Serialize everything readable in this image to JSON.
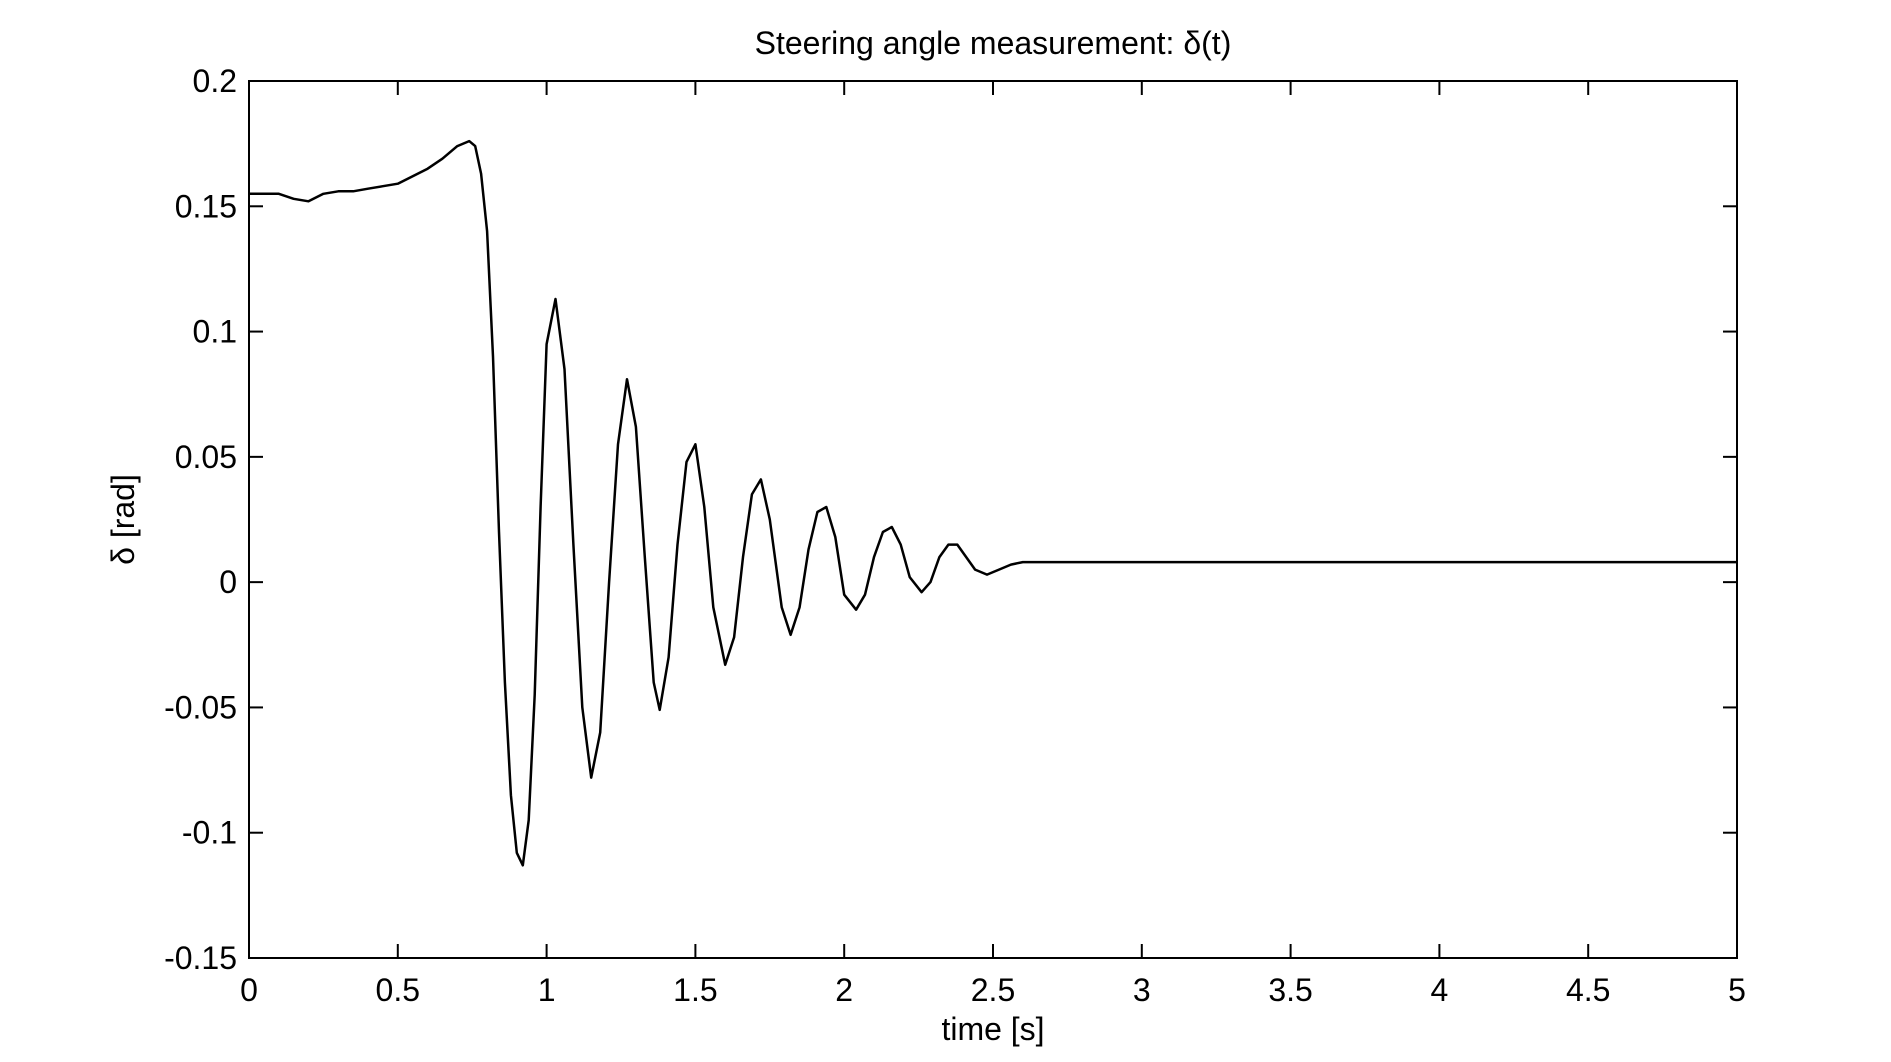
{
  "chart_data": {
    "type": "line",
    "title": "Steering angle measurement: δ(t)",
    "xlabel": "time [s]",
    "ylabel": "δ [rad]",
    "xlim": [
      0,
      5
    ],
    "ylim": [
      -0.15,
      0.2
    ],
    "x_ticks": [
      0,
      0.5,
      1,
      1.5,
      2,
      2.5,
      3,
      3.5,
      4,
      4.5,
      5
    ],
    "x_tick_labels": [
      "0",
      "0.5",
      "1",
      "1.5",
      "2",
      "2.5",
      "3",
      "3.5",
      "4",
      "4.5",
      "5"
    ],
    "y_ticks": [
      -0.15,
      -0.1,
      -0.05,
      0,
      0.05,
      0.1,
      0.15,
      0.2
    ],
    "y_tick_labels": [
      "-0.15",
      "-0.1",
      "-0.05",
      "0",
      "0.05",
      "0.1",
      "0.15",
      "0.2"
    ],
    "grid": false,
    "line_color": "#000000",
    "series": [
      {
        "x": [
          0,
          0.05,
          0.1,
          0.15,
          0.2,
          0.25,
          0.3,
          0.35,
          0.4,
          0.45,
          0.5,
          0.55,
          0.6,
          0.65,
          0.7,
          0.74,
          0.76,
          0.78,
          0.8,
          0.82,
          0.84,
          0.86,
          0.88,
          0.9,
          0.92,
          0.94,
          0.96,
          0.98,
          1.0,
          1.03,
          1.06,
          1.09,
          1.12,
          1.15,
          1.18,
          1.21,
          1.24,
          1.27,
          1.3,
          1.33,
          1.36,
          1.38,
          1.41,
          1.44,
          1.47,
          1.5,
          1.53,
          1.56,
          1.6,
          1.63,
          1.66,
          1.69,
          1.72,
          1.75,
          1.79,
          1.82,
          1.85,
          1.88,
          1.91,
          1.94,
          1.97,
          2.0,
          2.04,
          2.07,
          2.1,
          2.13,
          2.16,
          2.19,
          2.22,
          2.26,
          2.29,
          2.32,
          2.35,
          2.38,
          2.41,
          2.44,
          2.48,
          2.52,
          2.56,
          2.6,
          2.7,
          3.0,
          3.5,
          4.0,
          4.5,
          5.0
        ],
        "y": [
          0.155,
          0.155,
          0.155,
          0.153,
          0.152,
          0.155,
          0.156,
          0.156,
          0.157,
          0.158,
          0.159,
          0.162,
          0.165,
          0.169,
          0.174,
          0.176,
          0.174,
          0.163,
          0.14,
          0.09,
          0.02,
          -0.04,
          -0.085,
          -0.108,
          -0.113,
          -0.095,
          -0.045,
          0.03,
          0.095,
          0.113,
          0.085,
          0.015,
          -0.05,
          -0.078,
          -0.06,
          0.0,
          0.055,
          0.081,
          0.062,
          0.01,
          -0.04,
          -0.051,
          -0.03,
          0.015,
          0.048,
          0.055,
          0.03,
          -0.01,
          -0.033,
          -0.022,
          0.01,
          0.035,
          0.041,
          0.025,
          -0.01,
          -0.021,
          -0.01,
          0.013,
          0.028,
          0.03,
          0.018,
          -0.005,
          -0.011,
          -0.005,
          0.01,
          0.02,
          0.022,
          0.015,
          0.002,
          -0.004,
          0.0,
          0.01,
          0.015,
          0.015,
          0.01,
          0.005,
          0.003,
          0.005,
          0.007,
          0.008,
          0.008,
          0.008,
          0.008,
          0.008,
          0.008,
          0.008
        ]
      }
    ]
  }
}
